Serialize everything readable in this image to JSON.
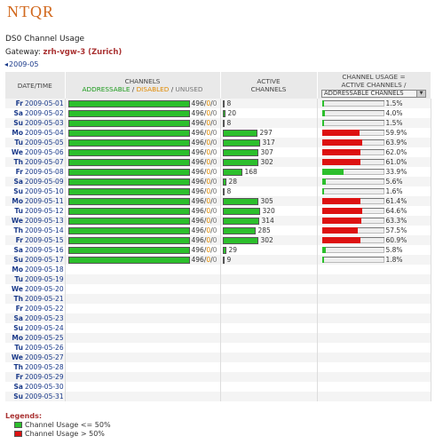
{
  "logo": "NTQR",
  "page_title": "DS0 Channel Usage",
  "gateway_label": "Gateway:",
  "gateway_value": "zrh-vgw-3 (Zurich)",
  "month_nav": "2009-05",
  "headers": {
    "date": "DATE/TIME",
    "channels": "CHANNELS",
    "addressable": "ADDRESSABLE",
    "disabled": "DISABLED",
    "unused": "UNUSED",
    "active1": "ACTIVE",
    "active2": "CHANNELS",
    "usage1": "CHANNEL USAGE =",
    "usage2": "ACTIVE CHANNELS /",
    "usage_select": "ADDRESSABLE CHANNELS"
  },
  "colors": {
    "green": "#2cbf2c",
    "red": "#dd1111"
  },
  "rows": [
    {
      "dow": "Fr",
      "date": "2009-05-01",
      "addr": "496",
      "dis": "0",
      "unused": "0",
      "active": "8",
      "usage": "1.5%"
    },
    {
      "dow": "Sa",
      "date": "2009-05-02",
      "addr": "496",
      "dis": "0",
      "unused": "0",
      "active": "20",
      "usage": "4.0%"
    },
    {
      "dow": "Su",
      "date": "2009-05-03",
      "addr": "496",
      "dis": "0",
      "unused": "0",
      "active": "8",
      "usage": "1.5%"
    },
    {
      "dow": "Mo",
      "date": "2009-05-04",
      "addr": "496",
      "dis": "0",
      "unused": "0",
      "active": "297",
      "usage": "59.9%"
    },
    {
      "dow": "Tu",
      "date": "2009-05-05",
      "addr": "496",
      "dis": "0",
      "unused": "0",
      "active": "317",
      "usage": "63.9%"
    },
    {
      "dow": "We",
      "date": "2009-05-06",
      "addr": "496",
      "dis": "0",
      "unused": "0",
      "active": "307",
      "usage": "62.0%"
    },
    {
      "dow": "Th",
      "date": "2009-05-07",
      "addr": "496",
      "dis": "0",
      "unused": "0",
      "active": "302",
      "usage": "61.0%"
    },
    {
      "dow": "Fr",
      "date": "2009-05-08",
      "addr": "496",
      "dis": "0",
      "unused": "0",
      "active": "168",
      "usage": "33.9%"
    },
    {
      "dow": "Sa",
      "date": "2009-05-09",
      "addr": "496",
      "dis": "0",
      "unused": "0",
      "active": "28",
      "usage": "5.6%"
    },
    {
      "dow": "Su",
      "date": "2009-05-10",
      "addr": "496",
      "dis": "0",
      "unused": "0",
      "active": "8",
      "usage": "1.6%"
    },
    {
      "dow": "Mo",
      "date": "2009-05-11",
      "addr": "496",
      "dis": "0",
      "unused": "0",
      "active": "305",
      "usage": "61.4%"
    },
    {
      "dow": "Tu",
      "date": "2009-05-12",
      "addr": "496",
      "dis": "0",
      "unused": "0",
      "active": "320",
      "usage": "64.6%"
    },
    {
      "dow": "We",
      "date": "2009-05-13",
      "addr": "496",
      "dis": "0",
      "unused": "0",
      "active": "314",
      "usage": "63.3%"
    },
    {
      "dow": "Th",
      "date": "2009-05-14",
      "addr": "496",
      "dis": "0",
      "unused": "0",
      "active": "285",
      "usage": "57.5%"
    },
    {
      "dow": "Fr",
      "date": "2009-05-15",
      "addr": "496",
      "dis": "0",
      "unused": "0",
      "active": "302",
      "usage": "60.9%"
    },
    {
      "dow": "Sa",
      "date": "2009-05-16",
      "addr": "496",
      "dis": "0",
      "unused": "0",
      "active": "29",
      "usage": "5.8%"
    },
    {
      "dow": "Su",
      "date": "2009-05-17",
      "addr": "496",
      "dis": "0",
      "unused": "0",
      "active": "9",
      "usage": "1.8%"
    },
    {
      "dow": "Mo",
      "date": "2009-05-18"
    },
    {
      "dow": "Tu",
      "date": "2009-05-19"
    },
    {
      "dow": "We",
      "date": "2009-05-20"
    },
    {
      "dow": "Th",
      "date": "2009-05-21"
    },
    {
      "dow": "Fr",
      "date": "2009-05-22"
    },
    {
      "dow": "Sa",
      "date": "2009-05-23"
    },
    {
      "dow": "Su",
      "date": "2009-05-24"
    },
    {
      "dow": "Mo",
      "date": "2009-05-25"
    },
    {
      "dow": "Tu",
      "date": "2009-05-26"
    },
    {
      "dow": "We",
      "date": "2009-05-27"
    },
    {
      "dow": "Th",
      "date": "2009-05-28"
    },
    {
      "dow": "Fr",
      "date": "2009-05-29"
    },
    {
      "dow": "Sa",
      "date": "2009-05-30"
    },
    {
      "dow": "Su",
      "date": "2009-05-31"
    }
  ],
  "legends": {
    "title": "Legends:",
    "items": [
      "Channel Usage <= 50%",
      "Channel Usage > 50%"
    ]
  }
}
